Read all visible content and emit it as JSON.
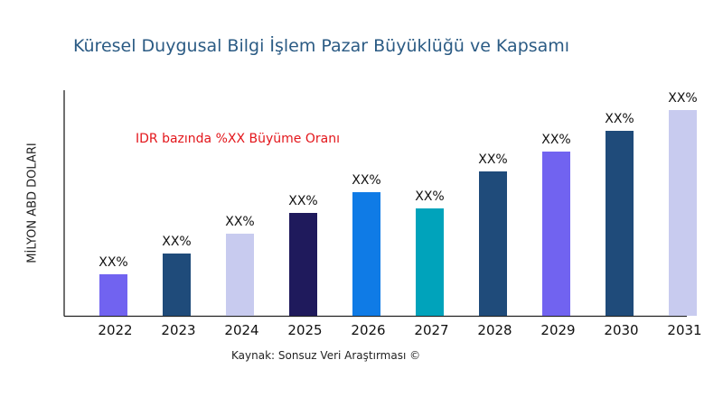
{
  "chart_data": {
    "type": "bar",
    "title": "Küresel Duygusal Bilgi İşlem Pazar Büyüklüğü ve Kapsamı",
    "xlabel": "",
    "ylabel": "MİLYON ABD DOLARI",
    "annotation": "IDR bazında %XX Büyüme Oranı",
    "source": "Kaynak: Sonsuz Veri Araştırması ©",
    "categories": [
      "2022",
      "2023",
      "2024",
      "2025",
      "2026",
      "2027",
      "2028",
      "2029",
      "2030",
      "2031"
    ],
    "values": [
      46,
      69,
      91,
      114,
      137,
      119,
      160,
      182,
      205,
      228
    ],
    "data_labels": [
      "XX%",
      "XX%",
      "XX%",
      "XX%",
      "XX%",
      "XX%",
      "XX%",
      "XX%",
      "XX%",
      "XX%"
    ],
    "colors": [
      "#7163f0",
      "#1f4b7a",
      "#c8cbef",
      "#1f1a5c",
      "#0f7be6",
      "#00a3bb",
      "#1f4b7a",
      "#7163f0",
      "#1f4b7a",
      "#c8cbef"
    ],
    "ylim": [
      0,
      250
    ],
    "grid": false,
    "legend": "none"
  }
}
